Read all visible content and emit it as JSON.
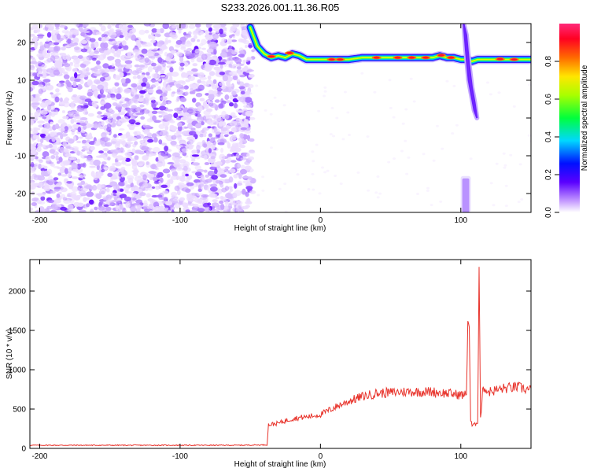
{
  "figure_title": "S233.2026.001.11.36.R05",
  "chart_data": [
    {
      "type": "heatmap",
      "xlabel": "Height of straight line (km)",
      "ylabel": "Frequency (Hz)",
      "xlim": [
        -207,
        150
      ],
      "ylim": [
        -25,
        25
      ],
      "xticks": [
        -200,
        -100,
        0,
        100
      ],
      "yticks": [
        -20,
        -10,
        0,
        10,
        20
      ],
      "colorbar": {
        "label": "Normalized spectral amplitude",
        "range": [
          0,
          1
        ],
        "ticks": [
          "0.0",
          "0.2",
          "0.4",
          "0.6",
          "0.8"
        ],
        "tick_values": [
          0.0,
          0.2,
          0.4,
          0.6,
          0.8
        ]
      },
      "features": {
        "noise_region_x": [
          -207,
          -48
        ],
        "ridge": {
          "x": [
            -50,
            -45,
            -40,
            -35,
            -30,
            -25,
            -20,
            -15,
            -10,
            -5,
            0,
            10,
            20,
            30,
            40,
            50,
            60,
            70,
            80,
            85,
            90,
            95,
            100,
            103,
            108,
            112,
            120,
            130,
            140,
            150
          ],
          "freq": [
            24,
            19,
            17,
            16,
            16.5,
            16,
            17,
            16.5,
            15.5,
            15.5,
            15.5,
            15.5,
            15.5,
            16,
            16,
            16,
            16,
            16,
            16,
            16.5,
            16,
            16,
            15.5,
            15.5,
            15,
            15.5,
            15.5,
            15.5,
            15.5,
            15.5
          ]
        },
        "vertical_feature": {
          "x": [
            102,
            104,
            106,
            108,
            110
          ],
          "freq_top": [
            25,
            22,
            14,
            8,
            4
          ],
          "freq_bottom": [
            18,
            10,
            6,
            2,
            0
          ]
        },
        "lower_blob": {
          "x": [
            101,
            106
          ],
          "freq": [
            -25,
            -16
          ]
        }
      }
    },
    {
      "type": "line",
      "xlabel": "Height of straight line (km)",
      "ylabel": "SNR (10 * v/v)",
      "xlim": [
        -207,
        150
      ],
      "ylim": [
        0,
        2400
      ],
      "xticks": [
        -200,
        -100,
        0,
        100
      ],
      "yticks": [
        0,
        500,
        1000,
        1500,
        2000
      ],
      "series": [
        {
          "color": "#e8322a",
          "x": [
            -207,
            -150,
            -100,
            -60,
            -38,
            -37,
            -30,
            -20,
            -10,
            0,
            10,
            20,
            30,
            40,
            50,
            60,
            70,
            80,
            90,
            100,
            104,
            105,
            106,
            107,
            108,
            110,
            112,
            113,
            114,
            116,
            118,
            120,
            130,
            140,
            150
          ],
          "y": [
            40,
            40,
            40,
            40,
            45,
            300,
            320,
            380,
            400,
            430,
            520,
            600,
            660,
            700,
            710,
            720,
            720,
            720,
            700,
            680,
            680,
            1650,
            1550,
            350,
            290,
            300,
            340,
            2400,
            380,
            800,
            740,
            720,
            760,
            780,
            740
          ]
        }
      ]
    }
  ]
}
